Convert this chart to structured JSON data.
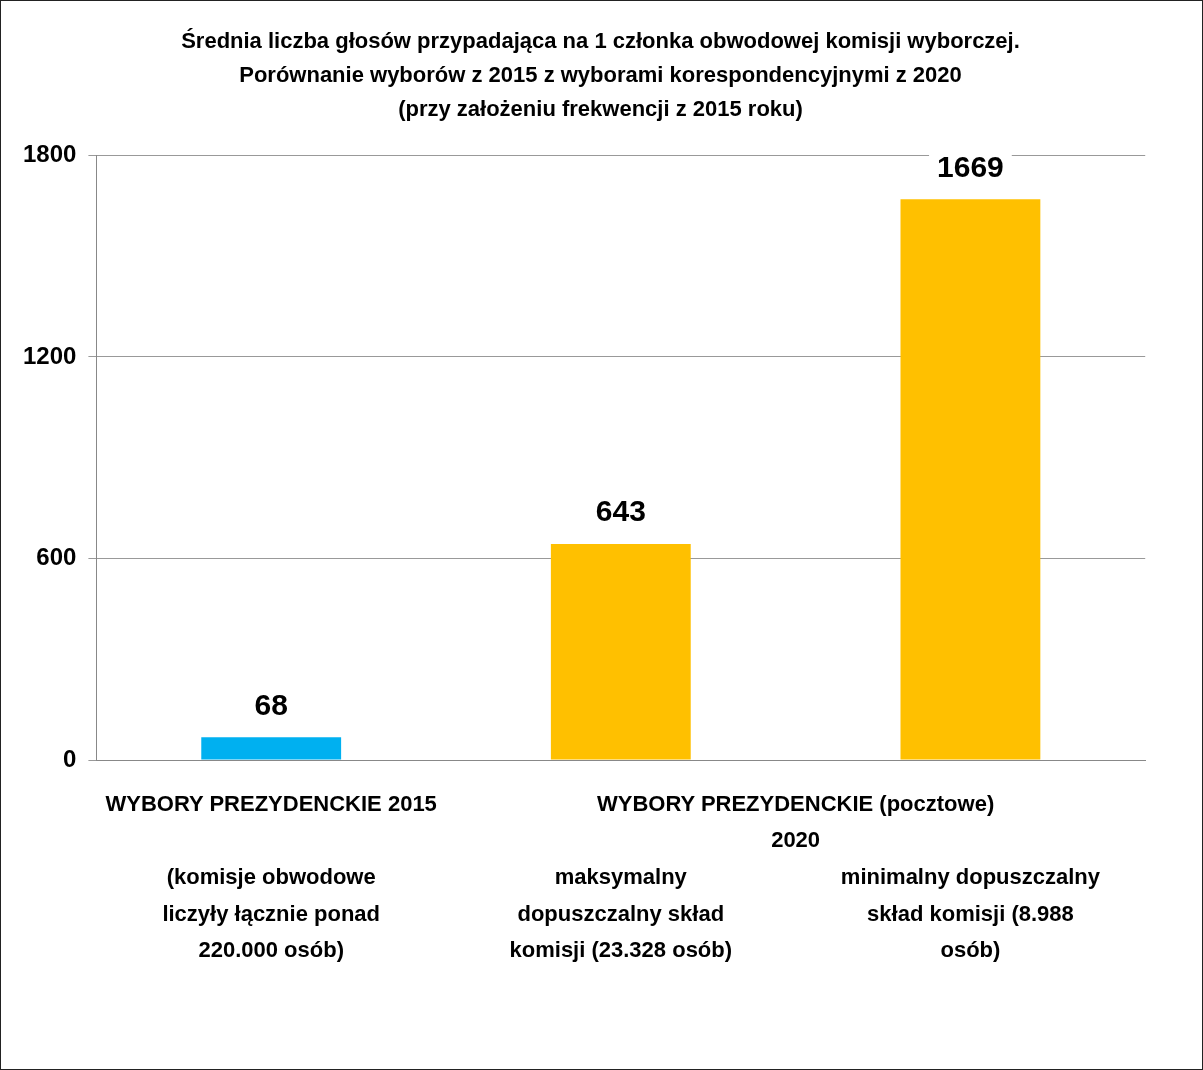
{
  "chart_data": {
    "type": "bar",
    "title": "Średnia liczba głosów przypadająca na 1 członka obwodowej komisji wyborczej.\nPorównanie wyborów z 2015 z wyborami korespondencyjnymi z 2020\n(przy założeniu frekwencji z 2015 roku)",
    "categories": [
      "(komisje obwodowe liczyły łącznie ponad 220.000 osób)",
      "maksymalny dopuszczalny skład komisji (23.328 osób)",
      "minimalny dopuszczalny skład komisji (8.988 osób)"
    ],
    "values": [
      68,
      643,
      1669
    ],
    "colors": [
      "#00b0f0",
      "#ffc000",
      "#ffc000"
    ],
    "ylim": [
      0,
      1800
    ],
    "yticks": [
      0,
      600,
      1200,
      1800
    ],
    "grid": "y",
    "data_labels": true,
    "annotations": [
      "WYBORY PREZYDENCKIE 2015",
      "WYBORY PREZYDENCKIE (pocztowe) 2020"
    ]
  }
}
